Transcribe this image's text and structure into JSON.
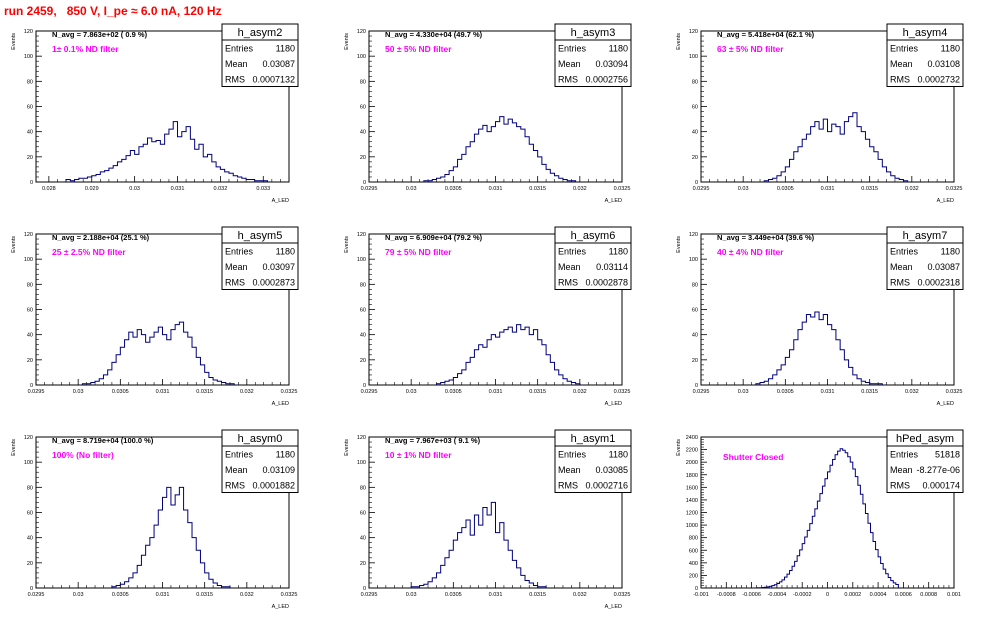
{
  "canvas_title": "run 2459,   850 V, I_pe ≈ 6.0 nA, 120 Hz",
  "colors": {
    "histogram": "#000080",
    "label": "#ff00ff",
    "title": "#ff0000",
    "frame": "#000000"
  },
  "chart_data": [
    {
      "type": "histogram",
      "name": "h_asym2",
      "navg": "N_avg = 7.863e+02 ( 0.9 %)",
      "filter": "1± 0.1% ND filter",
      "stats": {
        "Entries": "1180",
        "Mean": "0.03087",
        "RMS": "0.0007132"
      },
      "ylabel": "Events",
      "xlabel": "A_LED",
      "xlim": [
        0.0277,
        0.0336
      ],
      "ylim": [
        0,
        120
      ],
      "xticks": [
        0.028,
        0.029,
        0.03,
        0.031,
        0.032,
        0.033
      ],
      "xtick_labels": [
        "0.028",
        "0.029",
        "0.03",
        "0.031",
        "0.032",
        "0.033"
      ],
      "yticks": [
        0,
        20,
        40,
        60,
        80,
        100,
        120
      ],
      "bin_width": 0.0001,
      "bins_x": [
        0.0284,
        0.0285,
        0.0286,
        0.0287,
        0.0288,
        0.0289,
        0.029,
        0.0291,
        0.0292,
        0.0293,
        0.0294,
        0.0295,
        0.0296,
        0.0297,
        0.0298,
        0.0299,
        0.03,
        0.0301,
        0.0302,
        0.0303,
        0.0304,
        0.0305,
        0.0306,
        0.0307,
        0.0308,
        0.0309,
        0.031,
        0.0311,
        0.0312,
        0.0313,
        0.0314,
        0.0315,
        0.0316,
        0.0317,
        0.0318,
        0.0319,
        0.032,
        0.0321,
        0.0322,
        0.0323,
        0.0324,
        0.0325,
        0.0326,
        0.0327,
        0.0328,
        0.0329,
        0.033
      ],
      "counts": [
        2,
        1,
        2,
        3,
        3,
        4,
        5,
        6,
        8,
        9,
        11,
        13,
        16,
        18,
        21,
        25,
        22,
        28,
        30,
        35,
        32,
        33,
        30,
        38,
        42,
        48,
        36,
        40,
        44,
        34,
        26,
        30,
        20,
        22,
        16,
        12,
        10,
        8,
        7,
        5,
        4,
        3,
        2,
        2,
        1,
        1,
        1
      ]
    },
    {
      "type": "histogram",
      "name": "h_asym3",
      "navg": "N_avg = 4.330e+04 (49.7 %)",
      "filter": "50 ± 5% ND filter",
      "stats": {
        "Entries": "1180",
        "Mean": "0.03094",
        "RMS": "0.0002756"
      },
      "ylabel": "Events",
      "xlabel": "A_LED",
      "xlim": [
        0.0295,
        0.0325
      ],
      "ylim": [
        0,
        120
      ],
      "xticks": [
        0.0295,
        0.03,
        0.0305,
        0.031,
        0.0315,
        0.032,
        0.0325
      ],
      "xtick_labels": [
        "0.0295",
        "0.03",
        "0.0305",
        "0.031",
        "0.0315",
        "0.032",
        "0.0325"
      ],
      "yticks": [
        0,
        20,
        40,
        60,
        80,
        100,
        120
      ],
      "bin_width": 5e-05,
      "bins_x": [
        0.03015,
        0.0302,
        0.03025,
        0.0303,
        0.03035,
        0.0304,
        0.03045,
        0.0305,
        0.03055,
        0.0306,
        0.03065,
        0.0307,
        0.03075,
        0.0308,
        0.03085,
        0.0309,
        0.03095,
        0.031,
        0.03105,
        0.0311,
        0.03115,
        0.0312,
        0.03125,
        0.0313,
        0.03135,
        0.0314,
        0.03145,
        0.0315,
        0.03155,
        0.0316,
        0.03165,
        0.0317,
        0.03175,
        0.0318,
        0.03185,
        0.0319
      ],
      "counts": [
        1,
        1,
        2,
        3,
        4,
        6,
        9,
        12,
        18,
        22,
        28,
        32,
        38,
        42,
        45,
        40,
        44,
        48,
        52,
        46,
        50,
        47,
        44,
        42,
        36,
        30,
        25,
        20,
        14,
        10,
        7,
        5,
        3,
        2,
        1,
        1
      ]
    },
    {
      "type": "histogram",
      "name": "h_asym4",
      "navg": "N_avg = 5.418e+04 (62.1 %)",
      "filter": "63 ± 5% ND filter",
      "stats": {
        "Entries": "1180",
        "Mean": "0.03108",
        "RMS": "0.0002732"
      },
      "ylabel": "Events",
      "xlabel": "A_LED",
      "xlim": [
        0.0295,
        0.0325
      ],
      "ylim": [
        0,
        120
      ],
      "xticks": [
        0.0295,
        0.03,
        0.0305,
        0.031,
        0.0315,
        0.032,
        0.0325
      ],
      "xtick_labels": [
        "0.0295",
        "0.03",
        "0.0305",
        "0.031",
        "0.0315",
        "0.032",
        "0.0325"
      ],
      "yticks": [
        0,
        20,
        40,
        60,
        80,
        100,
        120
      ],
      "bin_width": 5e-05,
      "bins_x": [
        0.03025,
        0.0303,
        0.03035,
        0.0304,
        0.03045,
        0.0305,
        0.03055,
        0.0306,
        0.03065,
        0.0307,
        0.03075,
        0.0308,
        0.03085,
        0.0309,
        0.03095,
        0.031,
        0.03105,
        0.0311,
        0.03115,
        0.0312,
        0.03125,
        0.0313,
        0.03135,
        0.0314,
        0.03145,
        0.0315,
        0.03155,
        0.0316,
        0.03165,
        0.0317,
        0.03175,
        0.0318,
        0.03185,
        0.0319
      ],
      "counts": [
        1,
        2,
        3,
        5,
        8,
        12,
        18,
        24,
        28,
        34,
        38,
        44,
        48,
        42,
        50,
        40,
        46,
        44,
        38,
        48,
        52,
        55,
        44,
        40,
        34,
        28,
        24,
        18,
        12,
        8,
        5,
        3,
        2,
        1
      ]
    },
    {
      "type": "histogram",
      "name": "h_asym5",
      "navg": "N_avg = 2.188e+04 (25.1 %)",
      "filter": "25 ± 2.5% ND filter",
      "stats": {
        "Entries": "1180",
        "Mean": "0.03097",
        "RMS": "0.0002873"
      },
      "ylabel": "Events",
      "xlabel": "A_LED",
      "xlim": [
        0.0295,
        0.0325
      ],
      "ylim": [
        0,
        120
      ],
      "xticks": [
        0.0295,
        0.03,
        0.0305,
        0.031,
        0.0315,
        0.032,
        0.0325
      ],
      "xtick_labels": [
        "0.0295",
        "0.03",
        "0.0305",
        "0.031",
        "0.0315",
        "0.032",
        "0.0325"
      ],
      "yticks": [
        0,
        20,
        40,
        60,
        80,
        100,
        120
      ],
      "bin_width": 5e-05,
      "bins_x": [
        0.03005,
        0.0301,
        0.03015,
        0.0302,
        0.03025,
        0.0303,
        0.03035,
        0.0304,
        0.03045,
        0.0305,
        0.03055,
        0.0306,
        0.03065,
        0.0307,
        0.03075,
        0.0308,
        0.03085,
        0.0309,
        0.03095,
        0.031,
        0.03105,
        0.0311,
        0.03115,
        0.0312,
        0.03125,
        0.0313,
        0.03135,
        0.0314,
        0.03145,
        0.0315,
        0.03155,
        0.0316,
        0.03165,
        0.0317,
        0.03175,
        0.0318
      ],
      "counts": [
        1,
        1,
        2,
        3,
        5,
        8,
        12,
        18,
        24,
        30,
        36,
        42,
        38,
        44,
        40,
        34,
        38,
        42,
        46,
        40,
        36,
        44,
        48,
        50,
        42,
        38,
        30,
        22,
        16,
        10,
        6,
        4,
        3,
        2,
        1,
        1
      ]
    },
    {
      "type": "histogram",
      "name": "h_asym6",
      "navg": "N_avg = 6.909e+04 (79.2 %)",
      "filter": "79 ± 5% ND filter",
      "stats": {
        "Entries": "1180",
        "Mean": "0.03114",
        "RMS": "0.0002878"
      },
      "ylabel": "Events",
      "xlabel": "A_LED",
      "xlim": [
        0.0295,
        0.0325
      ],
      "ylim": [
        0,
        120
      ],
      "xticks": [
        0.0295,
        0.03,
        0.0305,
        0.031,
        0.0315,
        0.032,
        0.0325
      ],
      "xtick_labels": [
        "0.0295",
        "0.03",
        "0.0305",
        "0.031",
        "0.0315",
        "0.032",
        "0.0325"
      ],
      "yticks": [
        0,
        20,
        40,
        60,
        80,
        100,
        120
      ],
      "bin_width": 5e-05,
      "bins_x": [
        0.0303,
        0.03035,
        0.0304,
        0.03045,
        0.0305,
        0.03055,
        0.0306,
        0.03065,
        0.0307,
        0.03075,
        0.0308,
        0.03085,
        0.0309,
        0.03095,
        0.031,
        0.03105,
        0.0311,
        0.03115,
        0.0312,
        0.03125,
        0.0313,
        0.03135,
        0.0314,
        0.03145,
        0.0315,
        0.03155,
        0.0316,
        0.03165,
        0.0317,
        0.03175,
        0.0318,
        0.03185,
        0.0319,
        0.03195
      ],
      "counts": [
        1,
        2,
        3,
        4,
        6,
        9,
        12,
        18,
        22,
        28,
        32,
        30,
        36,
        40,
        38,
        42,
        44,
        46,
        42,
        48,
        44,
        46,
        40,
        44,
        36,
        32,
        24,
        18,
        12,
        8,
        5,
        3,
        2,
        1
      ]
    },
    {
      "type": "histogram",
      "name": "h_asym7",
      "navg": "N_avg = 3.449e+04 (39.6 %)",
      "filter": "40 ± 4% ND filter",
      "stats": {
        "Entries": "1180",
        "Mean": "0.03087",
        "RMS": "0.0002318"
      },
      "ylabel": "Events",
      "xlabel": "A_LED",
      "xlim": [
        0.0295,
        0.0325
      ],
      "ylim": [
        0,
        120
      ],
      "xticks": [
        0.0295,
        0.03,
        0.0305,
        0.031,
        0.0315,
        0.032,
        0.0325
      ],
      "xtick_labels": [
        "0.0295",
        "0.03",
        "0.0305",
        "0.031",
        "0.0315",
        "0.032",
        "0.0325"
      ],
      "yticks": [
        0,
        20,
        40,
        60,
        80,
        100,
        120
      ],
      "bin_width": 5e-05,
      "bins_x": [
        0.03015,
        0.0302,
        0.03025,
        0.0303,
        0.03035,
        0.0304,
        0.03045,
        0.0305,
        0.03055,
        0.0306,
        0.03065,
        0.0307,
        0.03075,
        0.0308,
        0.03085,
        0.0309,
        0.03095,
        0.031,
        0.03105,
        0.0311,
        0.03115,
        0.0312,
        0.03125,
        0.0313,
        0.03135,
        0.0314,
        0.03145,
        0.0315,
        0.03155,
        0.0316
      ],
      "counts": [
        1,
        2,
        3,
        5,
        8,
        12,
        16,
        22,
        28,
        36,
        44,
        50,
        56,
        54,
        58,
        52,
        56,
        48,
        44,
        36,
        28,
        20,
        14,
        8,
        5,
        3,
        2,
        1,
        1,
        1
      ]
    },
    {
      "type": "histogram",
      "name": "h_asym0",
      "navg": "N_avg = 8.719e+04 (100.0 %)",
      "filter": "100% (No filter)",
      "stats": {
        "Entries": "1180",
        "Mean": "0.03109",
        "RMS": "0.0001882"
      },
      "ylabel": "Events",
      "xlabel": "A_LED",
      "xlim": [
        0.0295,
        0.0325
      ],
      "ylim": [
        0,
        120
      ],
      "xticks": [
        0.0295,
        0.03,
        0.0305,
        0.031,
        0.0315,
        0.032,
        0.0325
      ],
      "xtick_labels": [
        "0.0295",
        "0.03",
        "0.0305",
        "0.031",
        "0.0315",
        "0.032",
        "0.0325"
      ],
      "yticks": [
        0,
        20,
        40,
        60,
        80,
        100,
        120
      ],
      "bin_width": 5e-05,
      "bins_x": [
        0.0304,
        0.03045,
        0.0305,
        0.03055,
        0.0306,
        0.03065,
        0.0307,
        0.03075,
        0.0308,
        0.03085,
        0.0309,
        0.03095,
        0.031,
        0.03105,
        0.0311,
        0.03115,
        0.0312,
        0.03125,
        0.0313,
        0.03135,
        0.0314,
        0.03145,
        0.0315,
        0.03155,
        0.0316,
        0.03165,
        0.0317,
        0.03175
      ],
      "counts": [
        1,
        2,
        3,
        5,
        8,
        12,
        18,
        26,
        34,
        40,
        50,
        62,
        72,
        80,
        66,
        74,
        80,
        62,
        52,
        40,
        30,
        20,
        12,
        7,
        4,
        2,
        1,
        1
      ]
    },
    {
      "type": "histogram",
      "name": "h_asym1",
      "navg": "N_avg = 7.967e+03 ( 9.1 %)",
      "filter": "10 ± 1% ND filter",
      "stats": {
        "Entries": "1180",
        "Mean": "0.03085",
        "RMS": "0.0002716"
      },
      "ylabel": "Events",
      "xlabel": "A_LED",
      "xlim": [
        0.0295,
        0.0325
      ],
      "ylim": [
        0,
        120
      ],
      "xticks": [
        0.0295,
        0.03,
        0.0305,
        0.031,
        0.0315,
        0.032,
        0.0325
      ],
      "xtick_labels": [
        "0.0295",
        "0.03",
        "0.0305",
        "0.031",
        "0.0315",
        "0.032",
        "0.0325"
      ],
      "yticks": [
        0,
        20,
        40,
        60,
        80,
        100,
        120
      ],
      "bin_width": 5e-05,
      "bins_x": [
        0.03,
        0.03005,
        0.0301,
        0.03015,
        0.0302,
        0.03025,
        0.0303,
        0.03035,
        0.0304,
        0.03045,
        0.0305,
        0.03055,
        0.0306,
        0.03065,
        0.0307,
        0.03075,
        0.0308,
        0.03085,
        0.0309,
        0.03095,
        0.031,
        0.03105,
        0.0311,
        0.03115,
        0.0312,
        0.03125,
        0.0313,
        0.03135,
        0.0314,
        0.03145,
        0.0315,
        0.03155
      ],
      "counts": [
        1,
        1,
        2,
        3,
        5,
        8,
        12,
        18,
        24,
        30,
        38,
        44,
        48,
        54,
        42,
        58,
        50,
        64,
        58,
        68,
        44,
        52,
        38,
        30,
        22,
        16,
        10,
        6,
        4,
        2,
        1,
        1
      ]
    },
    {
      "type": "histogram",
      "name": "hPed_asym",
      "navg": "",
      "filter": "Shutter Closed",
      "stats": {
        "Entries": "51818",
        "Mean": "-8.277e-06",
        "RMS": "0.000174"
      },
      "ylabel": "Events",
      "xlabel": "",
      "xlim": [
        -0.001,
        0.001
      ],
      "ylim": [
        0,
        2400
      ],
      "xticks": [
        -0.001,
        -0.0008,
        -0.0006,
        -0.0004,
        -0.0002,
        0,
        0.0002,
        0.0004,
        0.0006,
        0.0008,
        0.001
      ],
      "xtick_labels": [
        "-0.001",
        "-0.0008",
        "-0.0006",
        "-0.0004",
        "-0.0002",
        "0",
        "0.0002",
        "0.0004",
        "0.0006",
        "0.0008",
        "0.001"
      ],
      "yticks": [
        0,
        200,
        400,
        600,
        800,
        1000,
        1200,
        1400,
        1600,
        1800,
        2000,
        2200,
        2400
      ],
      "bin_width": 2e-05,
      "bins_x": [
        -0.00056,
        -0.00054,
        -0.00052,
        -0.0005,
        -0.00048,
        -0.00046,
        -0.00044,
        -0.00042,
        -0.0004,
        -0.00038,
        -0.00036,
        -0.00034,
        -0.00032,
        -0.0003,
        -0.00028,
        -0.00026,
        -0.00024,
        -0.00022,
        -0.0002,
        -0.00018,
        -0.00016,
        -0.00014,
        -0.00012,
        -0.0001,
        -8e-05,
        -6e-05,
        -4e-05,
        -2e-05,
        0,
        2e-05,
        4e-05,
        6e-05,
        8e-05,
        0.0001,
        0.00012,
        0.00014,
        0.00016,
        0.00018,
        0.0002,
        0.00022,
        0.00024,
        0.00026,
        0.00028,
        0.0003,
        0.00032,
        0.00034,
        0.00036,
        0.00038,
        0.0004,
        0.00042,
        0.00044,
        0.00046,
        0.00048,
        0.0005,
        0.00052,
        0.00054
      ],
      "counts": [
        3,
        5,
        8,
        12,
        18,
        26,
        38,
        52,
        72,
        98,
        130,
        172,
        220,
        278,
        346,
        424,
        512,
        606,
        706,
        810,
        916,
        1024,
        1140,
        1258,
        1380,
        1500,
        1620,
        1736,
        1846,
        1950,
        2042,
        2118,
        2176,
        2214,
        2190,
        2150,
        2086,
        2000,
        1892,
        1770,
        1634,
        1490,
        1338,
        1184,
        1030,
        880,
        740,
        610,
        494,
        390,
        300,
        226,
        166,
        118,
        82,
        56
      ]
    }
  ]
}
